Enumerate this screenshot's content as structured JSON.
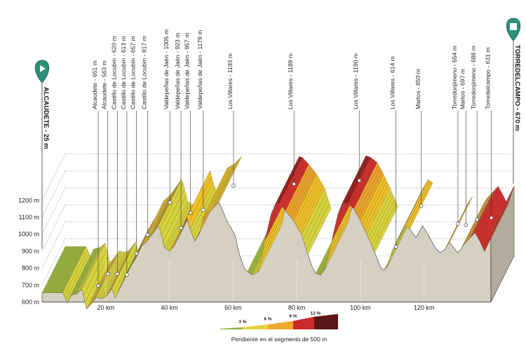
{
  "chart_data": {
    "type": "area",
    "title": "",
    "xlabel": "",
    "ylabel": "",
    "ylim": [
      600,
      1200
    ],
    "y_ticks": [
      "600 m",
      "700 m",
      "800 m",
      "900 m",
      "1000 m",
      "1100 m",
      "1200 m"
    ],
    "x_ticks": [
      "20 km",
      "40 km",
      "60 km",
      "80 km",
      "100 km",
      "120 km"
    ],
    "x_tick_values": [
      20,
      40,
      60,
      80,
      100,
      120
    ],
    "xlim": [
      0,
      141
    ],
    "start": {
      "name": "ALCAUDETE - 25 m",
      "icon": "play-icon",
      "color": "#2d8f77"
    },
    "finish": {
      "name": "TORREDELCAMPO - 670 m",
      "icon": "finish-flag-icon",
      "color": "#2d8f77"
    },
    "profile": [
      [
        0,
        655
      ],
      [
        6.5,
        655
      ],
      [
        8,
        595
      ],
      [
        9,
        640
      ],
      [
        11,
        650
      ],
      [
        12.5,
        675
      ],
      [
        14,
        560
      ],
      [
        15.5,
        590
      ],
      [
        17,
        630
      ],
      [
        18.5,
        620
      ],
      [
        20,
        630
      ],
      [
        22,
        680
      ],
      [
        23,
        625
      ],
      [
        24.5,
        690
      ],
      [
        26,
        750
      ],
      [
        27.5,
        800
      ],
      [
        29.5,
        860
      ],
      [
        31,
        925
      ],
      [
        33,
        960
      ],
      [
        35,
        1010
      ],
      [
        36.5,
        1050
      ],
      [
        37,
        1030
      ],
      [
        38.5,
        920
      ],
      [
        40,
        900
      ],
      [
        41.5,
        930
      ],
      [
        43,
        990
      ],
      [
        44.5,
        1050
      ],
      [
        45.5,
        1100
      ],
      [
        46.5,
        1030
      ],
      [
        48,
        960
      ],
      [
        49.5,
        1010
      ],
      [
        51,
        1120
      ],
      [
        53,
        1140
      ],
      [
        54,
        1160
      ],
      [
        55.5,
        1188
      ],
      [
        56.5,
        1150
      ],
      [
        58,
        1080
      ],
      [
        60.5,
        1000
      ],
      [
        62,
        880
      ],
      [
        63.5,
        800
      ],
      [
        64.5,
        780
      ],
      [
        66,
        760
      ],
      [
        68,
        780
      ],
      [
        70,
        960
      ],
      [
        72,
        1120
      ],
      [
        73.5,
        1185
      ],
      [
        74.5,
        1180
      ],
      [
        76.5,
        1140
      ],
      [
        79,
        1080
      ],
      [
        81.5,
        1000
      ],
      [
        83.5,
        880
      ],
      [
        85,
        800
      ],
      [
        86,
        770
      ],
      [
        87.5,
        760
      ],
      [
        89,
        800
      ],
      [
        91,
        960
      ],
      [
        93,
        1120
      ],
      [
        94.5,
        1190
      ],
      [
        96,
        1180
      ],
      [
        98,
        1150
      ],
      [
        100,
        1080
      ],
      [
        102,
        1000
      ],
      [
        104.5,
        890
      ],
      [
        106.5,
        800
      ],
      [
        107.5,
        790
      ],
      [
        108.5,
        810
      ],
      [
        110,
        900
      ],
      [
        112.5,
        1000
      ],
      [
        114,
        1050
      ],
      [
        115.5,
        1030
      ],
      [
        117.5,
        980
      ],
      [
        119.5,
        1050
      ],
      [
        121.5,
        990
      ],
      [
        123.5,
        920
      ],
      [
        125,
        890
      ],
      [
        126.5,
        910
      ],
      [
        127.5,
        940
      ],
      [
        128,
        950
      ],
      [
        129,
        930
      ],
      [
        130.5,
        890
      ],
      [
        131.5,
        910
      ],
      [
        132.5,
        940
      ],
      [
        134.5,
        980
      ],
      [
        136,
        1010
      ],
      [
        137.5,
        960
      ],
      [
        139,
        900
      ],
      [
        141,
        1010
      ]
    ],
    "segments": [
      [
        0,
        6.5,
        0
      ],
      [
        6.5,
        8,
        1
      ],
      [
        8,
        9,
        1
      ],
      [
        9,
        11,
        0
      ],
      [
        11,
        12.5,
        1
      ],
      [
        12.5,
        14,
        1
      ],
      [
        14,
        15.5,
        2
      ],
      [
        15.5,
        17,
        2
      ],
      [
        17,
        18.5,
        1
      ],
      [
        18.5,
        20,
        1
      ],
      [
        20,
        22,
        2
      ],
      [
        22,
        23,
        1
      ],
      [
        23,
        24.5,
        2
      ],
      [
        24.5,
        26,
        1
      ],
      [
        26,
        27.5,
        1
      ],
      [
        27.5,
        29.5,
        2
      ],
      [
        29.5,
        31,
        2
      ],
      [
        31,
        33,
        2
      ],
      [
        33,
        35,
        2
      ],
      [
        35,
        36.5,
        3
      ],
      [
        36.5,
        37,
        1
      ],
      [
        37,
        38.5,
        1
      ],
      [
        38.5,
        40,
        1
      ],
      [
        40,
        41.5,
        2
      ],
      [
        41.5,
        43,
        4
      ],
      [
        43,
        44.5,
        4
      ],
      [
        44.5,
        45.5,
        4
      ],
      [
        45.5,
        46.5,
        2
      ],
      [
        46.5,
        48,
        1
      ],
      [
        48,
        49.5,
        2
      ],
      [
        49.5,
        51,
        3
      ],
      [
        51,
        53,
        2
      ],
      [
        53,
        54,
        1
      ],
      [
        54,
        55.5,
        2
      ],
      [
        64.5,
        66,
        0
      ],
      [
        66,
        68,
        1
      ],
      [
        68,
        70,
        2
      ],
      [
        70,
        72,
        4
      ],
      [
        72,
        73.5,
        5
      ],
      [
        73.5,
        74.5,
        5
      ],
      [
        74.5,
        76.5,
        4
      ],
      [
        76.5,
        79,
        3
      ],
      [
        79,
        81.5,
        2
      ],
      [
        81.5,
        83.5,
        1
      ],
      [
        86,
        87.5,
        0
      ],
      [
        87.5,
        89,
        1
      ],
      [
        89,
        91,
        2
      ],
      [
        91,
        93,
        4
      ],
      [
        93,
        94.5,
        5
      ],
      [
        94.5,
        96,
        5
      ],
      [
        96,
        98,
        4
      ],
      [
        98,
        100,
        3
      ],
      [
        100,
        102,
        2
      ],
      [
        102,
        104.5,
        1
      ],
      [
        107.5,
        108.5,
        0
      ],
      [
        108.5,
        110,
        1
      ],
      [
        110,
        112.5,
        1
      ],
      [
        112.5,
        114,
        2
      ],
      [
        114,
        115.5,
        2
      ],
      [
        126.5,
        127.5,
        2
      ],
      [
        127.5,
        128,
        3
      ],
      [
        131.5,
        132.5,
        2
      ],
      [
        132.5,
        134.5,
        3
      ],
      [
        134.5,
        136,
        4
      ],
      [
        136,
        137.5,
        4
      ],
      [
        137.5,
        139,
        4
      ],
      [
        139,
        141,
        4
      ]
    ],
    "waypoints": [
      {
        "label": "Alcaudete - 651 m",
        "x": 14
      },
      {
        "label": "Alcaudete - 563 m",
        "x": 17
      },
      {
        "label": "Castillo de Locubín - 620 m",
        "x": 20
      },
      {
        "label": "Castillo de Locubín - 613 m",
        "x": 23
      },
      {
        "label": "Castillo de Locubín - 657 m",
        "x": 26
      },
      {
        "label": "Castillo de Locubín - 817 m",
        "x": 29.5
      },
      {
        "label": "Valdepeñas de Jaén - 1005 m",
        "x": 36.5
      },
      {
        "label": "Valdepeñas de Jaén - 923 m",
        "x": 40
      },
      {
        "label": "Valdepeñas de Jaén - 957 m",
        "x": 43
      },
      {
        "label": "Valdepeñas de Jaén - 1179 m",
        "x": 47
      },
      {
        "label": "Los Villares - 1193 m",
        "x": 56.5
      },
      {
        "label": "Los Villares - 1189 m",
        "x": 75.5
      },
      {
        "label": "Los Villares - 1190 m",
        "x": 96
      },
      {
        "label": "Los Villares - 614 m",
        "x": 107.5
      },
      {
        "label": "Martos - 850 m",
        "x": 115.5
      },
      {
        "label": "Martos - 697 m",
        "x": 129.5
      },
      {
        "label": "Torredonjimeno - 654 m",
        "x": 127
      },
      {
        "label": "Torredonjimeno - 688 m",
        "x": 133
      },
      {
        "label": "Torredelcampo - 631 m",
        "x": 137.5
      }
    ],
    "legend": {
      "caption": "Pendiente en el segmento de 500 m",
      "labels": [
        "3 %",
        "6 %",
        "9 %",
        "12 %"
      ]
    },
    "colors": {
      "ground": "#d6d0c3",
      "ground_dark": "#b3ab9b",
      "grid": "#9f9f9f",
      "gradient_scale": [
        "#9bb63c",
        "#d7d23b",
        "#efbf26",
        "#eca22a",
        "#d12a2a",
        "#961b1b",
        "#5a1616"
      ],
      "waypoint": "#ffffff",
      "stroke": "#333333"
    }
  }
}
